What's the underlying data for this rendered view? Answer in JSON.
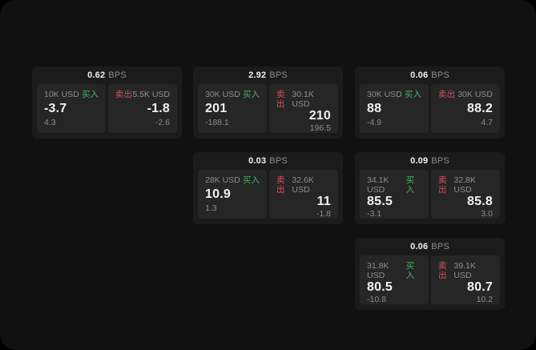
{
  "unit_label": "BPS",
  "buy_label": "买入",
  "sell_label": "卖出",
  "colors": {
    "surface": "#111112",
    "card": "#1b1b1c",
    "panel": "#262626",
    "buy": "#4fae6d",
    "sell": "#d15163",
    "text_primary": "#f2f2f2",
    "text_secondary": "#8d8d8d"
  },
  "cards": [
    {
      "bps": "0.62",
      "col": 1,
      "row": 1,
      "buy": {
        "amount": "10K USD",
        "price": "-3.7",
        "delta": "4.3"
      },
      "sell": {
        "amount": "5.5K USD",
        "price": "-1.8",
        "delta": "-2.6"
      }
    },
    {
      "bps": "2.92",
      "col": 2,
      "row": 1,
      "buy": {
        "amount": "30K USD",
        "price": "201",
        "delta": "-188.1"
      },
      "sell": {
        "amount": "30.1K USD",
        "price": "210",
        "delta": "196.5"
      }
    },
    {
      "bps": "0.06",
      "col": 3,
      "row": 1,
      "buy": {
        "amount": "30K USD",
        "price": "88",
        "delta": "-4.9"
      },
      "sell": {
        "amount": "30K USD",
        "price": "88.2",
        "delta": "4.7"
      }
    },
    {
      "bps": "0.03",
      "col": 2,
      "row": 2,
      "buy": {
        "amount": "28K USD",
        "price": "10.9",
        "delta": "1.3"
      },
      "sell": {
        "amount": "32.6K USD",
        "price": "11",
        "delta": "-1.8"
      }
    },
    {
      "bps": "0.09",
      "col": 3,
      "row": 2,
      "buy": {
        "amount": "34.1K USD",
        "price": "85.5",
        "delta": "-3.1"
      },
      "sell": {
        "amount": "32.8K USD",
        "price": "85.8",
        "delta": "3.0"
      }
    },
    {
      "bps": "0.06",
      "col": 3,
      "row": 3,
      "buy": {
        "amount": "31.8K USD",
        "price": "80.5",
        "delta": "-10.8"
      },
      "sell": {
        "amount": "39.1K USD",
        "price": "80.7",
        "delta": "10.2"
      }
    }
  ]
}
